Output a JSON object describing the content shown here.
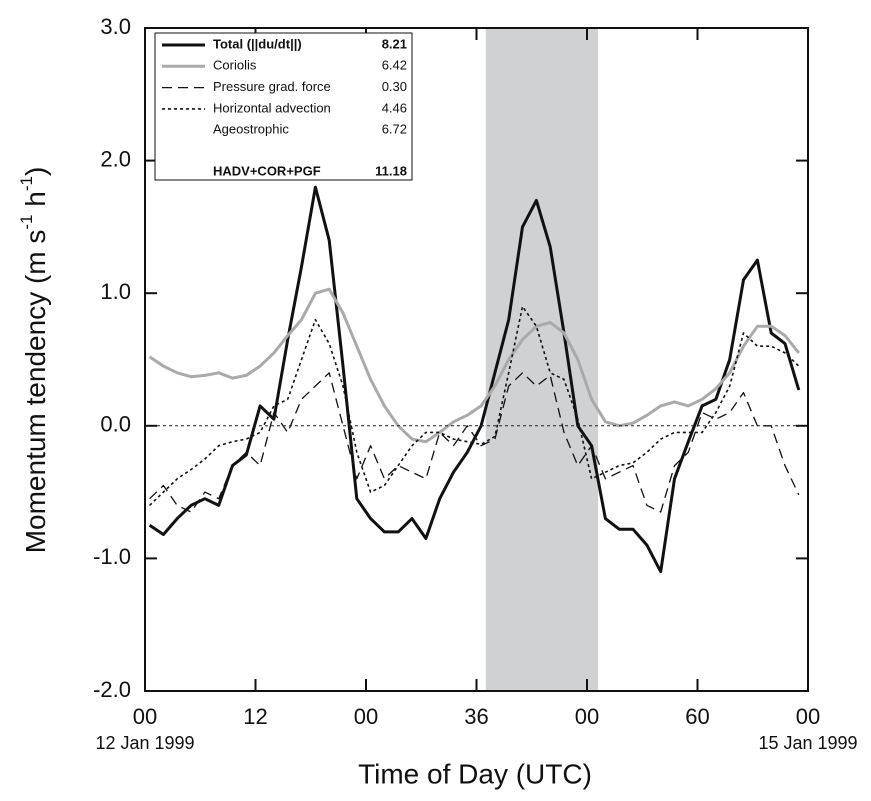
{
  "chart_data": {
    "type": "line",
    "xlabel": "Time of Day (UTC)",
    "ylabel": [
      "Momentum tendency (m s",
      "-1",
      " h",
      "-1",
      ")"
    ],
    "xlim": [
      0,
      72
    ],
    "ylim": [
      -2,
      3
    ],
    "xticks": [
      {
        "value": 0,
        "label": "00"
      },
      12,
      {
        "value": 24,
        "label": "00"
      },
      36,
      {
        "value": 48,
        "label": "00"
      },
      60,
      {
        "value": 72,
        "label": "00"
      }
    ],
    "yticks": [
      {
        "value": -2,
        "label": "-2.0"
      },
      {
        "value": -1,
        "label": "-1.0"
      },
      {
        "value": 0,
        "label": "0.0"
      },
      {
        "value": 1,
        "label": "1.0"
      },
      {
        "value": 2,
        "label": "2.0"
      },
      {
        "value": 3,
        "label": "3.0"
      }
    ],
    "date_labels": [
      {
        "value": 0,
        "label": "12 Jan 1999"
      },
      {
        "value": 72,
        "label": "15 Jan 1999"
      }
    ],
    "shaded_span": [
      37,
      49.2
    ],
    "shade_color": "#d0d1d3",
    "zero_line": true,
    "x": [
      0.5,
      2,
      3.5,
      5,
      6.5,
      8,
      9.5,
      11,
      12.5,
      14,
      15.5,
      17,
      18.5,
      20,
      21.5,
      23,
      24.5,
      26,
      27.5,
      29,
      30.5,
      32,
      33.5,
      35,
      36.5,
      38,
      39.5,
      41,
      42.5,
      44,
      45.5,
      47,
      48.5,
      50,
      51.5,
      53,
      54.5,
      56,
      57.5,
      59,
      60.5,
      62,
      63.5,
      65,
      66.5,
      68,
      69.5,
      71
    ],
    "series": [
      {
        "name": "Total (||du/dt||)",
        "color": "#111111",
        "width": 3,
        "dash": "none",
        "bold": true,
        "legend_value": 8.21,
        "values": [
          -0.75,
          -0.82,
          -0.7,
          -0.6,
          -0.55,
          -0.6,
          -0.3,
          -0.22,
          0.15,
          0.05,
          0.65,
          1.2,
          1.8,
          1.4,
          0.45,
          -0.55,
          -0.7,
          -0.8,
          -0.8,
          -0.7,
          -0.85,
          -0.55,
          -0.35,
          -0.2,
          0.0,
          0.4,
          0.8,
          1.5,
          1.7,
          1.35,
          0.7,
          0.0,
          -0.15,
          -0.7,
          -0.78,
          -0.78,
          -0.9,
          -1.1,
          -0.4,
          -0.12,
          0.15,
          0.2,
          0.5,
          1.1,
          1.25,
          0.7,
          0.62,
          0.27
        ]
      },
      {
        "name": "Coriolis",
        "color": "#aaaaaa",
        "width": 3,
        "dash": "none",
        "bold": false,
        "legend_value": 6.42,
        "values": [
          0.52,
          0.45,
          0.4,
          0.37,
          0.38,
          0.4,
          0.36,
          0.38,
          0.45,
          0.55,
          0.68,
          0.8,
          1.0,
          1.03,
          0.85,
          0.6,
          0.35,
          0.15,
          0.0,
          -0.1,
          -0.12,
          -0.05,
          0.03,
          0.08,
          0.15,
          0.3,
          0.5,
          0.65,
          0.75,
          0.78,
          0.7,
          0.5,
          0.2,
          0.03,
          0.0,
          0.02,
          0.08,
          0.15,
          0.18,
          0.15,
          0.2,
          0.28,
          0.4,
          0.6,
          0.75,
          0.75,
          0.68,
          0.55
        ]
      },
      {
        "name": "Pressure grad. force",
        "color": "#111111",
        "width": 1.3,
        "dash": "10,6",
        "bold": false,
        "legend_value": 0.3,
        "legend_value_label": "0.30",
        "values": [
          -0.55,
          -0.45,
          -0.6,
          -0.65,
          -0.5,
          -0.55,
          -0.3,
          -0.2,
          -0.3,
          0.1,
          -0.05,
          0.2,
          0.3,
          0.4,
          0.0,
          -0.4,
          -0.15,
          -0.4,
          -0.3,
          -0.35,
          -0.4,
          -0.05,
          -0.15,
          0.0,
          -0.15,
          -0.1,
          0.3,
          0.4,
          0.3,
          0.38,
          -0.05,
          -0.3,
          -0.15,
          -0.4,
          -0.35,
          -0.3,
          -0.6,
          -0.65,
          -0.3,
          -0.2,
          0.1,
          0.05,
          0.1,
          0.25,
          0.0,
          0.0,
          -0.3,
          -0.52
        ]
      },
      {
        "name": "Horizontal advection",
        "color": "#111111",
        "width": 1.6,
        "dash": "3,3",
        "bold": false,
        "legend_value": 4.46,
        "values": [
          -0.6,
          -0.5,
          -0.4,
          -0.33,
          -0.25,
          -0.15,
          -0.12,
          -0.1,
          -0.05,
          0.15,
          0.2,
          0.5,
          0.8,
          0.62,
          0.3,
          -0.2,
          -0.5,
          -0.45,
          -0.3,
          -0.15,
          -0.05,
          -0.05,
          -0.1,
          -0.12,
          -0.14,
          -0.08,
          0.4,
          0.9,
          0.75,
          0.4,
          0.35,
          0.05,
          -0.4,
          -0.35,
          -0.3,
          -0.28,
          -0.2,
          -0.1,
          -0.05,
          -0.05,
          -0.05,
          0.1,
          0.3,
          0.7,
          0.6,
          0.6,
          0.55,
          0.45
        ]
      }
    ],
    "legend_extra": [
      {
        "name": "Ageostrophic",
        "value": 6.72,
        "bold": false
      },
      {
        "name": "HADV+COR+PGF",
        "value": 11.18,
        "bold": true
      }
    ]
  }
}
